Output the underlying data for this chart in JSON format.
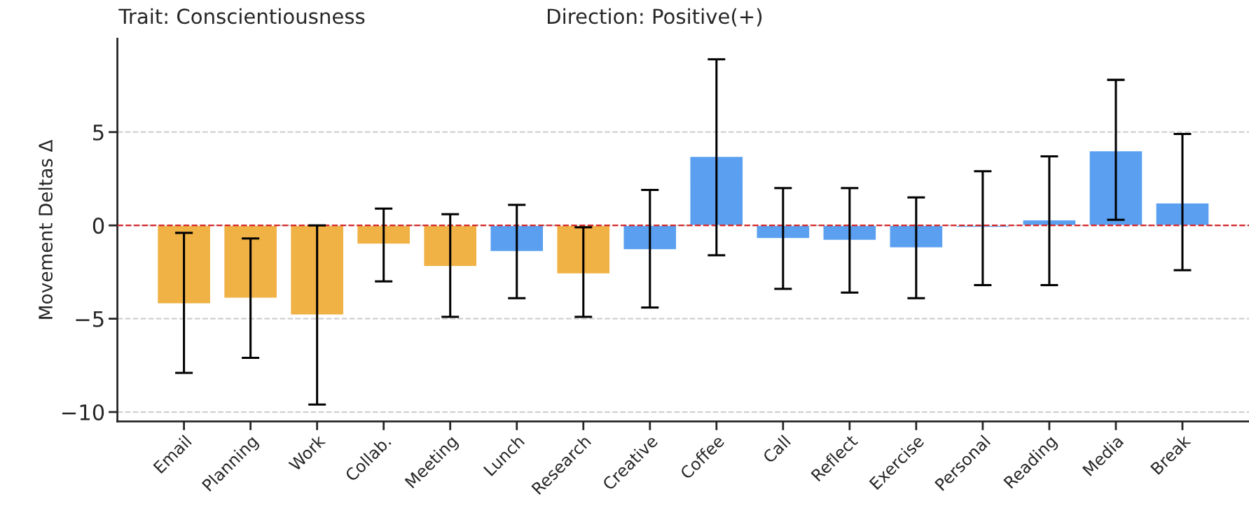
{
  "chart_data": {
    "type": "bar",
    "title": "Trait: Conscientiousness",
    "subtitle": "Direction: Positive(+)",
    "ylabel": "Movement Deltas Δ",
    "categories": [
      "Email",
      "Planning",
      "Work",
      "Collab.",
      "Meeting",
      "Lunch",
      "Research",
      "Creative",
      "Coffee",
      "Call",
      "Reflect",
      "Exercise",
      "Personal",
      "Reading",
      "Media",
      "Break"
    ],
    "values": [
      -4.2,
      -3.9,
      -4.8,
      -1.0,
      -2.2,
      -1.4,
      -2.6,
      -1.3,
      3.7,
      -0.7,
      -0.8,
      -1.2,
      -0.1,
      0.3,
      4.0,
      1.2
    ],
    "errors": [
      [
        -7.9,
        -0.4
      ],
      [
        -7.1,
        -0.7
      ],
      [
        -9.6,
        0.0
      ],
      [
        -3.0,
        0.9
      ],
      [
        -4.9,
        0.6
      ],
      [
        -3.9,
        1.1
      ],
      [
        -4.9,
        -0.1
      ],
      [
        -4.4,
        1.9
      ],
      [
        -1.6,
        8.9
      ],
      [
        -3.4,
        2.0
      ],
      [
        -3.6,
        2.0
      ],
      [
        -3.9,
        1.5
      ],
      [
        -3.2,
        2.9
      ],
      [
        -3.2,
        3.7
      ],
      [
        0.3,
        7.8
      ],
      [
        -2.4,
        4.9
      ]
    ],
    "colors": [
      "#f0b145",
      "#f0b145",
      "#f0b145",
      "#f0b145",
      "#f0b145",
      "#5a9ff0",
      "#f0b145",
      "#5a9ff0",
      "#5a9ff0",
      "#5a9ff0",
      "#5a9ff0",
      "#5a9ff0",
      "#5a9ff0",
      "#5a9ff0",
      "#5a9ff0",
      "#5a9ff0"
    ],
    "ylim": [
      -10.5,
      10
    ],
    "yticks": [
      -10,
      -5,
      0,
      5
    ],
    "grid": "y",
    "ref_lines": [
      {
        "axis": "y",
        "value": 0,
        "color": "#d62728",
        "line_style": "dashed"
      }
    ]
  }
}
